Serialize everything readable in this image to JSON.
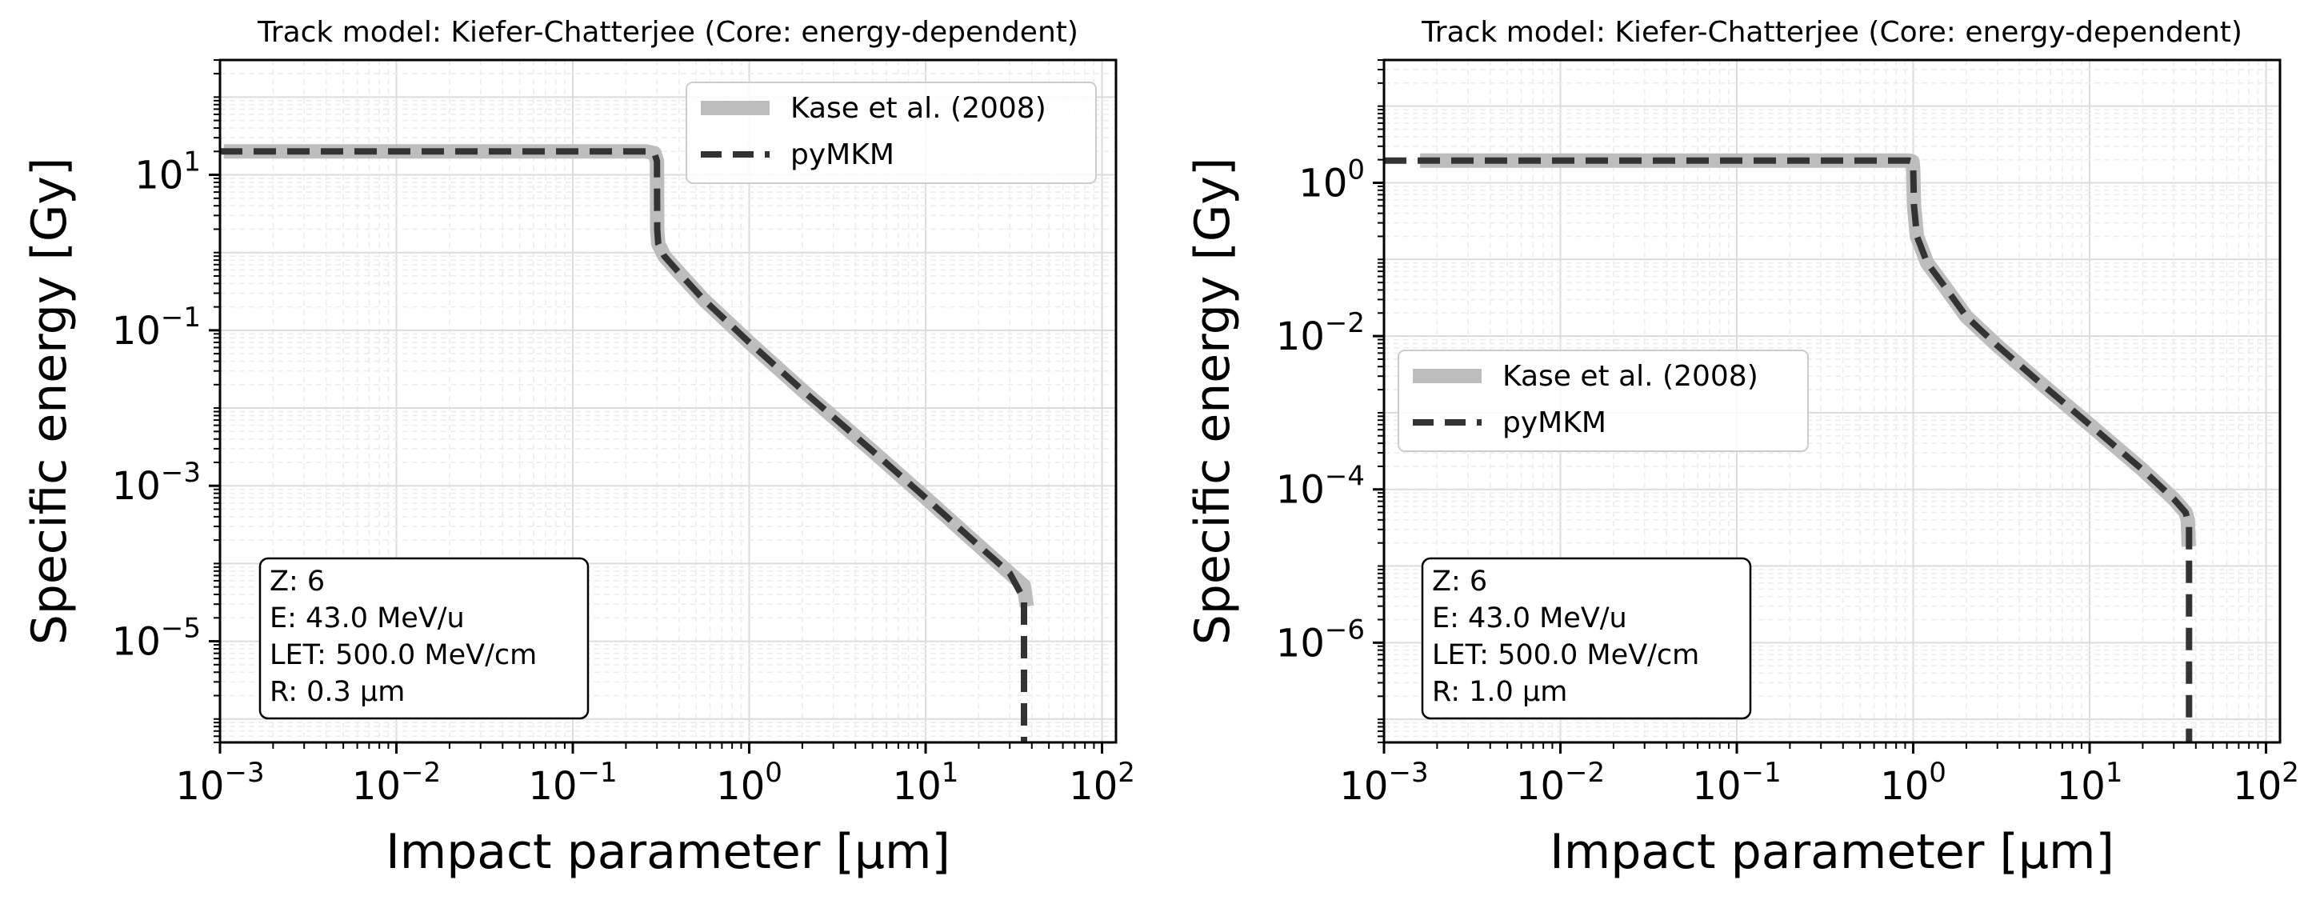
{
  "chart_data": [
    {
      "type": "line",
      "title": "Track model: Kiefer-Chatterjee (Core: energy-dependent)",
      "xlabel": "Impact parameter [μm]",
      "ylabel": "Specific energy [Gy]",
      "xscale": "log",
      "yscale": "log",
      "xlim": [
        0.001,
        120
      ],
      "ylim": [
        5e-07,
        300
      ],
      "xticks": [
        0.001,
        0.01,
        0.1,
        1,
        10,
        100
      ],
      "xtick_labels": [
        [
          "10",
          "−3"
        ],
        [
          "10",
          "−2"
        ],
        [
          "10",
          "−1"
        ],
        [
          "10",
          "0"
        ],
        [
          "10",
          "1"
        ],
        [
          "10",
          "2"
        ]
      ],
      "yticks": [
        10,
        0.1,
        0.001,
        1e-05
      ],
      "ytick_labels": [
        [
          "10",
          "1"
        ],
        [
          "10",
          "−1"
        ],
        [
          "10",
          "−3"
        ],
        [
          "10",
          "−5"
        ]
      ],
      "grid": true,
      "legend_position": "upper right",
      "series": [
        {
          "name": "Kase et al. (2008)",
          "color": "#bdbdbd",
          "style": "solid",
          "x": [
            0.00105,
            0.18,
            0.26,
            0.29,
            0.3,
            0.301,
            0.305,
            0.33,
            0.4,
            0.55,
            1,
            2,
            5,
            10,
            20,
            30,
            36,
            37.5
          ],
          "y": [
            20,
            20,
            20,
            19,
            15,
            2.0,
            1.3,
            0.9,
            0.55,
            0.25,
            0.07,
            0.017,
            0.0028,
            0.0007,
            0.00017,
            7.5e-05,
            5.2e-05,
            2.8e-05
          ]
        },
        {
          "name": "pyMKM",
          "color": "#333333",
          "style": "dashed",
          "x": [
            0.001,
            0.18,
            0.26,
            0.29,
            0.3,
            0.301,
            0.305,
            0.33,
            0.4,
            0.55,
            1,
            2,
            5,
            10,
            20,
            30,
            36,
            36.1,
            36.1
          ],
          "y": [
            20,
            20,
            20,
            19,
            15,
            2.0,
            1.3,
            0.9,
            0.55,
            0.25,
            0.07,
            0.017,
            0.0028,
            0.0007,
            0.00017,
            7.5e-05,
            3.5e-05,
            3.5e-05,
            5e-07
          ]
        }
      ],
      "annotation": [
        "Z: 6",
        "E: 43.0 MeV/u",
        "LET: 500.0 MeV/cm",
        "R: 0.3 μm"
      ]
    },
    {
      "type": "line",
      "title": "Track model: Kiefer-Chatterjee (Core: energy-dependent)",
      "xlabel": "Impact parameter [μm]",
      "ylabel": "Specific energy [Gy]",
      "xscale": "log",
      "yscale": "log",
      "xlim": [
        0.001,
        120
      ],
      "ylim": [
        5e-08,
        40
      ],
      "xticks": [
        0.001,
        0.01,
        0.1,
        1,
        10,
        100
      ],
      "xtick_labels": [
        [
          "10",
          "−3"
        ],
        [
          "10",
          "−2"
        ],
        [
          "10",
          "−1"
        ],
        [
          "10",
          "0"
        ],
        [
          "10",
          "1"
        ],
        [
          "10",
          "2"
        ]
      ],
      "yticks": [
        1,
        0.01,
        0.0001,
        1e-06
      ],
      "ytick_labels": [
        [
          "10",
          "0"
        ],
        [
          "10",
          "−2"
        ],
        [
          "10",
          "−4"
        ],
        [
          "10",
          "−6"
        ]
      ],
      "grid": true,
      "legend_position": "center left",
      "series": [
        {
          "name": "Kase et al. (2008)",
          "color": "#bdbdbd",
          "style": "solid",
          "x": [
            0.0016,
            0.85,
            0.95,
            0.99,
            1.0,
            1.01,
            1.05,
            1.2,
            1.5,
            2,
            3,
            5,
            10,
            20,
            30,
            35,
            36,
            36.5
          ],
          "y": [
            1.95,
            1.95,
            1.95,
            1.9,
            1.5,
            0.5,
            0.2,
            0.09,
            0.045,
            0.018,
            0.0075,
            0.0027,
            0.0007,
            0.00018,
            7.5e-05,
            5e-05,
            4e-05,
            1.8e-05
          ]
        },
        {
          "name": "pyMKM",
          "color": "#333333",
          "style": "dashed",
          "x": [
            0.001,
            0.85,
            0.95,
            0.99,
            1.0,
            1.01,
            1.05,
            1.2,
            1.5,
            2,
            3,
            5,
            10,
            20,
            30,
            35,
            36.5,
            36.6,
            36.6
          ],
          "y": [
            1.95,
            1.95,
            1.95,
            1.9,
            1.5,
            0.5,
            0.2,
            0.09,
            0.045,
            0.018,
            0.0075,
            0.0027,
            0.0007,
            0.00018,
            7.5e-05,
            5e-05,
            3.5e-05,
            3.5e-05,
            5e-08
          ]
        }
      ],
      "annotation": [
        "Z: 6",
        "E: 43.0 MeV/u",
        "LET: 500.0 MeV/cm",
        "R: 1.0 μm"
      ]
    }
  ]
}
